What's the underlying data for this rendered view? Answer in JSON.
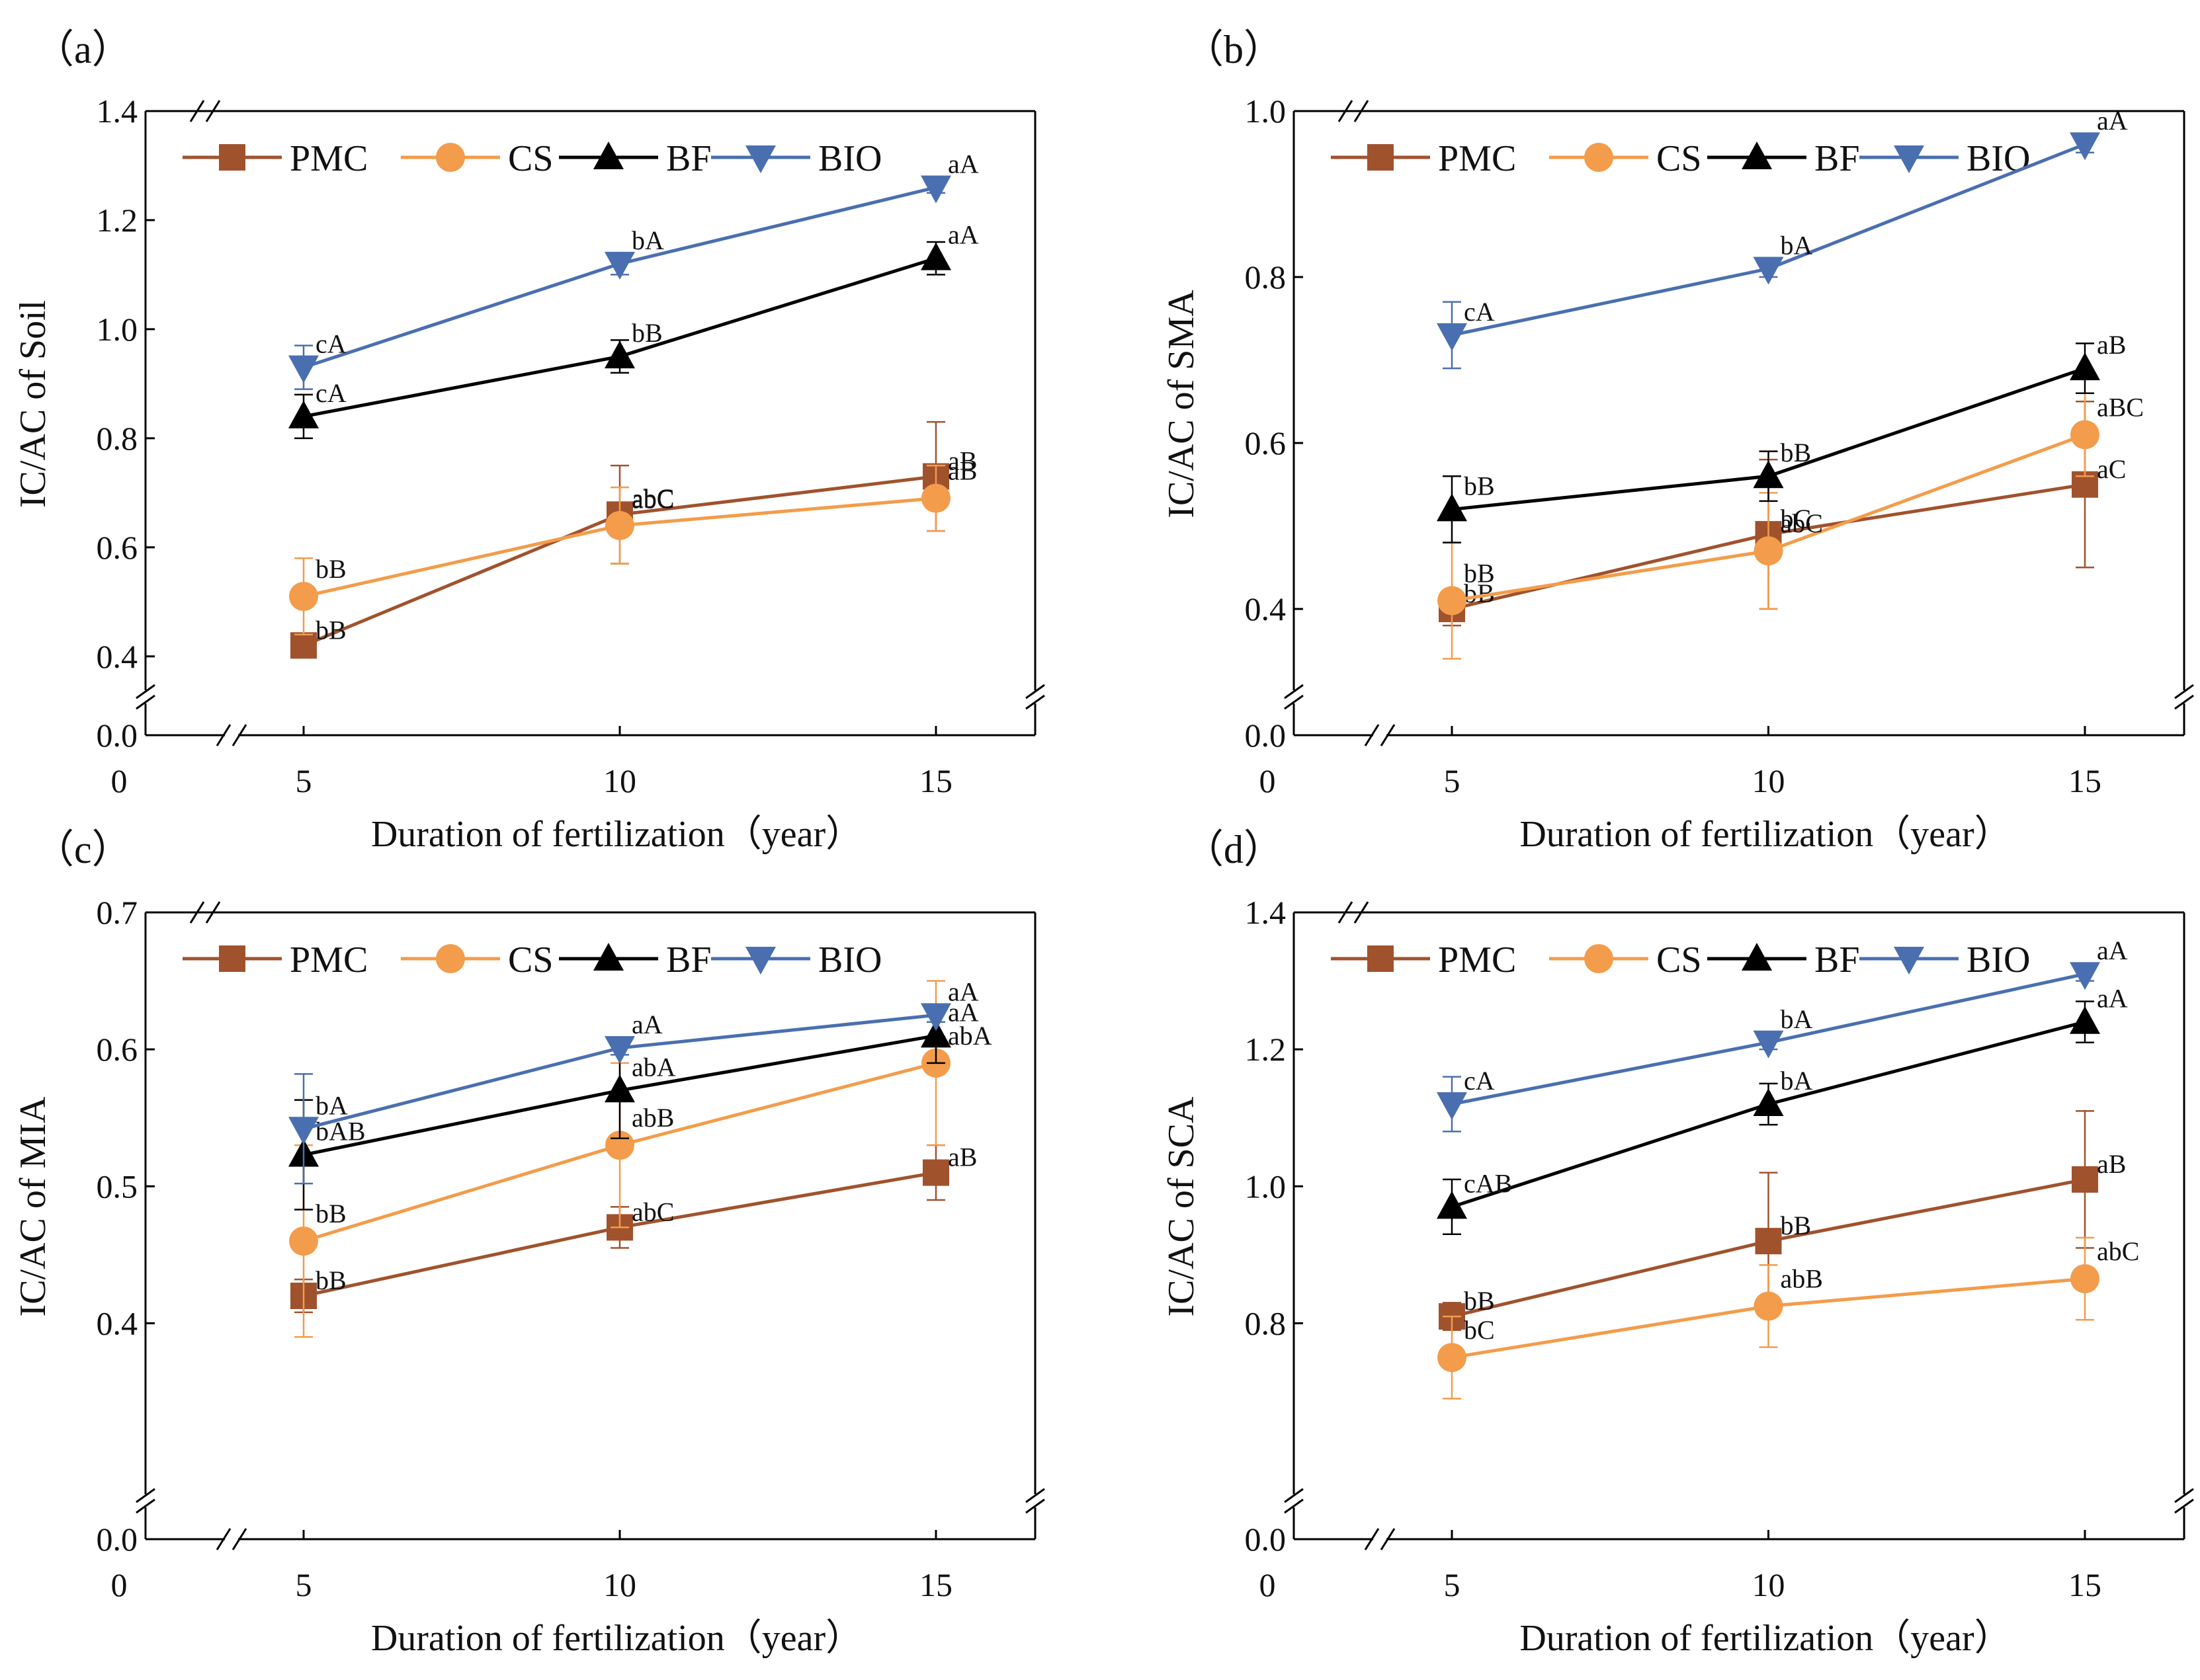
{
  "figure": {
    "series_styles": [
      {
        "name": "PMC",
        "marker": "square",
        "color": "#a0522d"
      },
      {
        "name": "CS",
        "marker": "circle",
        "color": "#f39c4b"
      },
      {
        "name": "BF",
        "marker": "triangle-up",
        "color": "#000000"
      },
      {
        "name": "BIO",
        "marker": "triangle-down",
        "color": "#4a6fb0"
      }
    ]
  },
  "chart_data": [
    {
      "type": "line",
      "panel": "（a）",
      "xlabel": "Duration of  fertilization（year）",
      "ylabel": "IC/AC of Soil",
      "x": [
        5,
        10,
        15
      ],
      "xticks": [
        "0",
        "5",
        "10",
        "15"
      ],
      "yticks": [
        {
          "value": 0.0,
          "label": "0.0"
        },
        {
          "value": 0.4,
          "label": "0.4"
        },
        {
          "value": 0.6,
          "label": "0.6"
        },
        {
          "value": 0.8,
          "label": "0.8"
        },
        {
          "value": 1.0,
          "label": "1.0"
        },
        {
          "value": 1.2,
          "label": "1.2"
        },
        {
          "value": 1.4,
          "label": "1.4"
        }
      ],
      "ylim_upper": [
        0.35,
        1.4
      ],
      "axis_break": true,
      "series": [
        {
          "name": "PMC",
          "values": [
            0.42,
            0.66,
            0.73
          ],
          "errors": [
            0.02,
            0.09,
            0.1
          ],
          "labels": [
            "bB",
            "abC",
            "aB"
          ]
        },
        {
          "name": "CS",
          "values": [
            0.51,
            0.64,
            0.69
          ],
          "errors": [
            0.07,
            0.07,
            0.06
          ],
          "labels": [
            "bB",
            "abC",
            "aB"
          ]
        },
        {
          "name": "BF",
          "values": [
            0.84,
            0.95,
            1.13
          ],
          "errors": [
            0.04,
            0.03,
            0.03
          ],
          "labels": [
            "cA",
            "bB",
            "aA"
          ]
        },
        {
          "name": "BIO",
          "values": [
            0.93,
            1.12,
            1.26
          ],
          "errors": [
            0.04,
            0.02,
            0.01
          ],
          "labels": [
            "cA",
            "bA",
            "aA"
          ]
        }
      ]
    },
    {
      "type": "line",
      "panel": "（b）",
      "xlabel": "Duration of  fertilization（year）",
      "ylabel": "IC/AC of SMA",
      "x": [
        5,
        10,
        15
      ],
      "xticks": [
        "0",
        "5",
        "10",
        "15"
      ],
      "yticks": [
        {
          "value": 0.0,
          "label": "0.0"
        },
        {
          "value": 0.4,
          "label": "0.4"
        },
        {
          "value": 0.6,
          "label": "0.6"
        },
        {
          "value": 0.8,
          "label": "0.8"
        },
        {
          "value": 1.0,
          "label": "1.0"
        }
      ],
      "ylim_upper": [
        0.31,
        1.0
      ],
      "axis_break": true,
      "series": [
        {
          "name": "PMC",
          "values": [
            0.4,
            0.49,
            0.55
          ],
          "errors": [
            0.02,
            0.09,
            0.1
          ],
          "labels": [
            "bB",
            "bC",
            "aC"
          ]
        },
        {
          "name": "CS",
          "values": [
            0.41,
            0.47,
            0.61
          ],
          "errors": [
            0.07,
            0.07,
            0.05
          ],
          "labels": [
            "bB",
            "abC",
            "aBC"
          ]
        },
        {
          "name": "BF",
          "values": [
            0.52,
            0.56,
            0.69
          ],
          "errors": [
            0.04,
            0.03,
            0.03
          ],
          "labels": [
            "bB",
            "bB",
            "aB"
          ]
        },
        {
          "name": "BIO",
          "values": [
            0.73,
            0.81,
            0.96
          ],
          "errors": [
            0.04,
            0.01,
            0.01
          ],
          "labels": [
            "cA",
            "bA",
            "aA"
          ]
        }
      ]
    },
    {
      "type": "line",
      "panel": "（c）",
      "xlabel": "Duration of  fertilization（year）",
      "ylabel": "IC/AC of MIA",
      "x": [
        5,
        10,
        15
      ],
      "xticks": [
        "0",
        "5",
        "10",
        "15"
      ],
      "yticks": [
        {
          "value": 0.0,
          "label": "0.0"
        },
        {
          "value": 0.4,
          "label": "0.4"
        },
        {
          "value": 0.5,
          "label": "0.5"
        },
        {
          "value": 0.6,
          "label": "0.6"
        },
        {
          "value": 0.7,
          "label": "0.7"
        }
      ],
      "ylim_upper": [
        0.28,
        0.7
      ],
      "axis_break": true,
      "series": [
        {
          "name": "PMC",
          "values": [
            0.42,
            0.47,
            0.51
          ],
          "errors": [
            0.012,
            0.015,
            0.02
          ],
          "labels": [
            "bB",
            "abC",
            "aB"
          ]
        },
        {
          "name": "CS",
          "values": [
            0.46,
            0.53,
            0.59
          ],
          "errors": [
            0.07,
            0.06,
            0.06
          ],
          "labels": [
            "bB",
            "abB",
            "abA"
          ]
        },
        {
          "name": "BF",
          "values": [
            0.523,
            0.57,
            0.61
          ],
          "errors": [
            0.04,
            0.035,
            0.02
          ],
          "labels": [
            "bAB",
            "abA",
            "aA"
          ]
        },
        {
          "name": "BIO",
          "values": [
            0.542,
            0.601,
            0.625
          ],
          "errors": [
            0.04,
            0.005,
            0.005
          ],
          "labels": [
            "bA",
            "aA",
            "aA"
          ]
        }
      ]
    },
    {
      "type": "line",
      "panel": "（d）",
      "xlabel": "Duration of  fertilization（year）",
      "ylabel": "IC/AC of SCA",
      "x": [
        5,
        10,
        15
      ],
      "xticks": [
        "0",
        "5",
        "10",
        "15"
      ],
      "yticks": [
        {
          "value": 0.0,
          "label": "0.0"
        },
        {
          "value": 0.8,
          "label": "0.8"
        },
        {
          "value": 1.0,
          "label": "1.0"
        },
        {
          "value": 1.2,
          "label": "1.2"
        },
        {
          "value": 1.4,
          "label": "1.4"
        }
      ],
      "ylim_upper": [
        0.56,
        1.4
      ],
      "axis_break": true,
      "series": [
        {
          "name": "PMC",
          "values": [
            0.81,
            0.92,
            1.01
          ],
          "errors": [
            0.02,
            0.1,
            0.1
          ],
          "labels": [
            "bB",
            "bB",
            "aB"
          ]
        },
        {
          "name": "CS",
          "values": [
            0.75,
            0.825,
            0.865
          ],
          "errors": [
            0.06,
            0.06,
            0.06
          ],
          "labels": [
            "bC",
            "abB",
            "abC"
          ]
        },
        {
          "name": "BF",
          "values": [
            0.97,
            1.12,
            1.24
          ],
          "errors": [
            0.04,
            0.03,
            0.03
          ],
          "labels": [
            "cAB",
            "bA",
            "aA"
          ]
        },
        {
          "name": "BIO",
          "values": [
            1.12,
            1.21,
            1.31
          ],
          "errors": [
            0.04,
            0.01,
            0.01
          ],
          "labels": [
            "cA",
            "bA",
            "aA"
          ]
        }
      ]
    }
  ]
}
